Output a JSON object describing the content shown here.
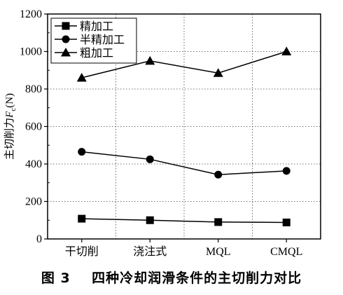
{
  "chart_data": {
    "type": "line",
    "categories": [
      "干切削",
      "浇注式",
      "MQL",
      "CMQL"
    ],
    "series": [
      {
        "name": "精加工",
        "marker": "square",
        "values": [
          108,
          100,
          90,
          88
        ]
      },
      {
        "name": "半精加工",
        "marker": "circle",
        "values": [
          465,
          425,
          343,
          363
        ]
      },
      {
        "name": "粗加工",
        "marker": "triangle",
        "values": [
          860,
          950,
          885,
          1000
        ]
      }
    ],
    "ylabel": {
      "prefix": "主切削力",
      "symbol": "F",
      "subscript": "c",
      "unit": "(N)"
    },
    "ylim": [
      0,
      1200
    ],
    "yticks": [
      0,
      200,
      400,
      600,
      800,
      1000,
      1200
    ],
    "grid": "dotted",
    "legend": "top-left",
    "line_color": "#000000"
  },
  "caption": "图 3    四种冷却润滑条件的主切削力对比"
}
